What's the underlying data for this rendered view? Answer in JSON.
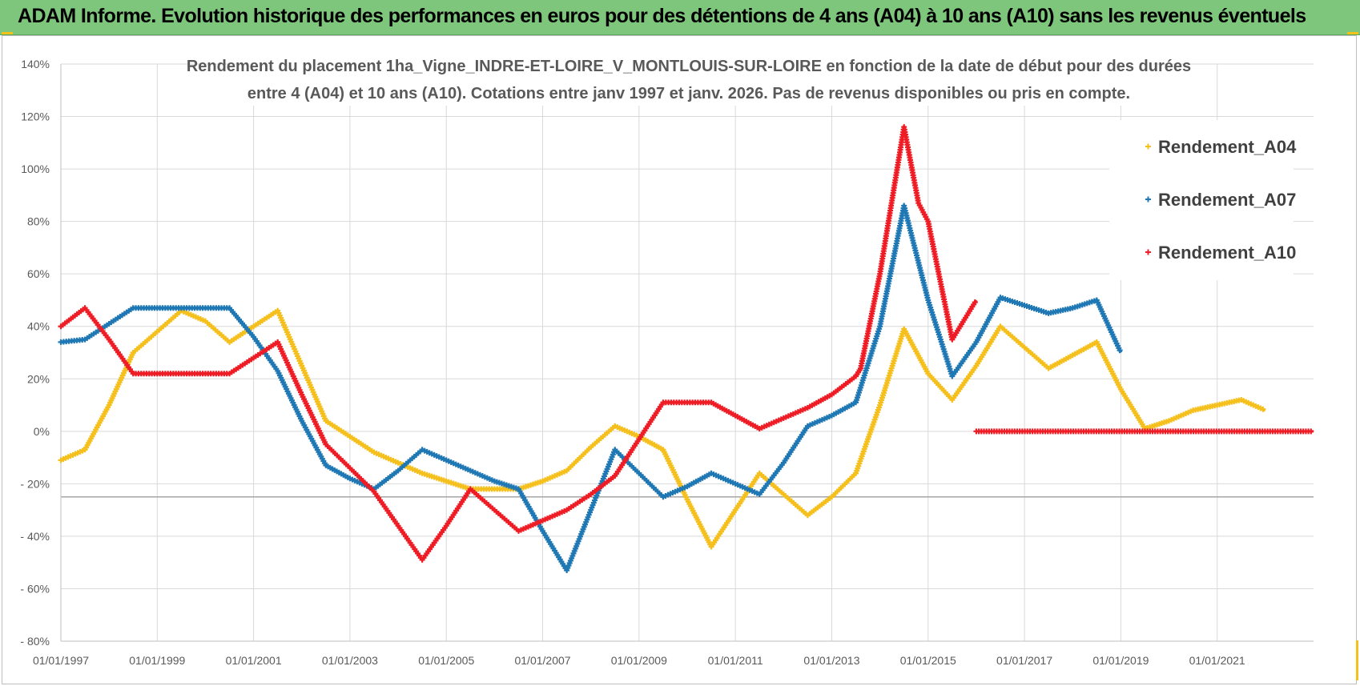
{
  "header": {
    "title": "ADAM Informe. Evolution historique des performances en euros pour des détentions de 4 ans (A04) à 10 ans (A10) sans les revenus éventuels"
  },
  "chart_data": {
    "type": "line",
    "subtitle_line1": "Rendement du placement 1ha_Vigne_INDRE-ET-LOIRE_V_MONTLOUIS-SUR-LOIRE en fonction de la date de début pour des durées",
    "subtitle_line2": "entre 4 (A04) et 10 ans (A10).  Cotations entre janv 1997 et janv. 2026. Pas de revenus disponibles ou pris en compte.",
    "xlim": [
      1997,
      2023.0
    ],
    "ylim": [
      -80,
      140
    ],
    "yticks": [
      {
        "v": 140,
        "label": "140%"
      },
      {
        "v": 120,
        "label": "120%"
      },
      {
        "v": 100,
        "label": "100%"
      },
      {
        "v": 80,
        "label": "80%"
      },
      {
        "v": 60,
        "label": "60%"
      },
      {
        "v": 40,
        "label": "40%"
      },
      {
        "v": 20,
        "label": "20%"
      },
      {
        "v": 0,
        "label": "0%"
      },
      {
        "v": -20,
        "label": "- 20%"
      },
      {
        "v": -40,
        "label": "- 40%"
      },
      {
        "v": -60,
        "label": "- 60%"
      },
      {
        "v": -80,
        "label": "- 80%"
      }
    ],
    "xticks": [
      {
        "v": 1997,
        "label": "01/01/1997"
      },
      {
        "v": 1999,
        "label": "01/01/1999"
      },
      {
        "v": 2001,
        "label": "01/01/2001"
      },
      {
        "v": 2003,
        "label": "01/01/2003"
      },
      {
        "v": 2005,
        "label": "01/01/2005"
      },
      {
        "v": 2007,
        "label": "01/01/2007"
      },
      {
        "v": 2009,
        "label": "01/01/2009"
      },
      {
        "v": 2011,
        "label": "01/01/2011"
      },
      {
        "v": 2013,
        "label": "01/01/2013"
      },
      {
        "v": 2015,
        "label": "01/01/2015"
      },
      {
        "v": 2017,
        "label": "01/01/2017"
      },
      {
        "v": 2019,
        "label": "01/01/2019"
      },
      {
        "v": 2021,
        "label": "01/01/2021"
      }
    ],
    "reference_line_y": -25,
    "series": [
      {
        "name": "Rendement_A04",
        "color": "#f5c01d",
        "points": [
          [
            1997.0,
            -11
          ],
          [
            1997.5,
            -7
          ],
          [
            1998.0,
            10
          ],
          [
            1998.5,
            30
          ],
          [
            1999.0,
            38
          ],
          [
            1999.5,
            46
          ],
          [
            2000.0,
            42
          ],
          [
            2000.5,
            34
          ],
          [
            2001.0,
            40
          ],
          [
            2001.5,
            46
          ],
          [
            2002.0,
            25
          ],
          [
            2002.5,
            4
          ],
          [
            2003.0,
            -2
          ],
          [
            2003.5,
            -8
          ],
          [
            2004.0,
            -12
          ],
          [
            2004.5,
            -16
          ],
          [
            2005.0,
            -19
          ],
          [
            2005.5,
            -22
          ],
          [
            2006.0,
            -22
          ],
          [
            2006.5,
            -22
          ],
          [
            2007.0,
            -19
          ],
          [
            2007.5,
            -15
          ],
          [
            2008.0,
            -6
          ],
          [
            2008.5,
            2
          ],
          [
            2009.0,
            -2
          ],
          [
            2009.5,
            -7
          ],
          [
            2010.0,
            -26
          ],
          [
            2010.5,
            -44
          ],
          [
            2011.0,
            -30
          ],
          [
            2011.5,
            -16
          ],
          [
            2012.0,
            -24
          ],
          [
            2012.5,
            -32
          ],
          [
            2013.0,
            -25
          ],
          [
            2013.5,
            -16
          ],
          [
            2014.0,
            10
          ],
          [
            2014.5,
            39
          ],
          [
            2015.0,
            22
          ],
          [
            2015.5,
            12
          ],
          [
            2016.0,
            25
          ],
          [
            2016.5,
            40
          ],
          [
            2017.0,
            32
          ],
          [
            2017.5,
            24
          ],
          [
            2018.0,
            29
          ],
          [
            2018.5,
            34
          ],
          [
            2019.0,
            16
          ],
          [
            2019.5,
            1
          ],
          [
            2020.0,
            4
          ],
          [
            2020.5,
            8
          ],
          [
            2021.0,
            10
          ],
          [
            2021.5,
            12
          ],
          [
            2022.0,
            8
          ]
        ]
      },
      {
        "name": "Rendement_A07",
        "color": "#1f78b4",
        "points": [
          [
            1997.0,
            34
          ],
          [
            1997.5,
            35
          ],
          [
            1998.0,
            41
          ],
          [
            1998.5,
            47
          ],
          [
            1999.0,
            47
          ],
          [
            1999.5,
            47
          ],
          [
            2000.0,
            47
          ],
          [
            2000.5,
            47
          ],
          [
            2001.0,
            36
          ],
          [
            2001.5,
            23
          ],
          [
            2002.0,
            4
          ],
          [
            2002.5,
            -13
          ],
          [
            2003.0,
            -18
          ],
          [
            2003.5,
            -22
          ],
          [
            2004.0,
            -15
          ],
          [
            2004.5,
            -7
          ],
          [
            2005.0,
            -11
          ],
          [
            2005.5,
            -15
          ],
          [
            2006.0,
            -19
          ],
          [
            2006.5,
            -22
          ],
          [
            2007.0,
            -38
          ],
          [
            2007.5,
            -53
          ],
          [
            2008.0,
            -30
          ],
          [
            2008.5,
            -7
          ],
          [
            2009.0,
            -16
          ],
          [
            2009.5,
            -25
          ],
          [
            2010.0,
            -21
          ],
          [
            2010.5,
            -16
          ],
          [
            2011.0,
            -20
          ],
          [
            2011.5,
            -24
          ],
          [
            2012.0,
            -12
          ],
          [
            2012.5,
            2
          ],
          [
            2013.0,
            6
          ],
          [
            2013.5,
            11
          ],
          [
            2014.0,
            40
          ],
          [
            2014.5,
            86
          ],
          [
            2015.0,
            50
          ],
          [
            2015.5,
            21
          ],
          [
            2016.0,
            34
          ],
          [
            2016.5,
            51
          ],
          [
            2017.0,
            48
          ],
          [
            2017.5,
            45
          ],
          [
            2018.0,
            47
          ],
          [
            2018.5,
            50
          ],
          [
            2019.0,
            30
          ]
        ]
      },
      {
        "name": "Rendement_A10",
        "color": "#ee1c25",
        "points": [
          [
            1997.0,
            40
          ],
          [
            1997.5,
            47
          ],
          [
            1998.0,
            35
          ],
          [
            1998.5,
            22
          ],
          [
            1999.0,
            22
          ],
          [
            1999.5,
            22
          ],
          [
            2000.0,
            22
          ],
          [
            2000.5,
            22
          ],
          [
            2001.0,
            28
          ],
          [
            2001.5,
            34
          ],
          [
            2002.0,
            14
          ],
          [
            2002.5,
            -5
          ],
          [
            2003.0,
            -14
          ],
          [
            2003.5,
            -23
          ],
          [
            2004.0,
            -36
          ],
          [
            2004.5,
            -49
          ],
          [
            2005.0,
            -36
          ],
          [
            2005.5,
            -22
          ],
          [
            2006.0,
            -30
          ],
          [
            2006.5,
            -38
          ],
          [
            2007.0,
            -34
          ],
          [
            2007.5,
            -30
          ],
          [
            2008.0,
            -24
          ],
          [
            2008.5,
            -17
          ],
          [
            2009.0,
            -3
          ],
          [
            2009.5,
            11
          ],
          [
            2010.0,
            11
          ],
          [
            2010.5,
            11
          ],
          [
            2011.0,
            6
          ],
          [
            2011.5,
            1
          ],
          [
            2012.0,
            5
          ],
          [
            2012.5,
            9
          ],
          [
            2013.0,
            14
          ],
          [
            2013.5,
            21
          ],
          [
            2013.6,
            24
          ],
          [
            2014.0,
            60
          ],
          [
            2014.5,
            116
          ],
          [
            2014.8,
            87
          ],
          [
            2015.0,
            80
          ],
          [
            2015.5,
            35
          ],
          [
            2016.0,
            50
          ]
        ],
        "flat_segment": {
          "from": 2016.0,
          "to": 2023.0,
          "value": 0
        }
      }
    ]
  }
}
